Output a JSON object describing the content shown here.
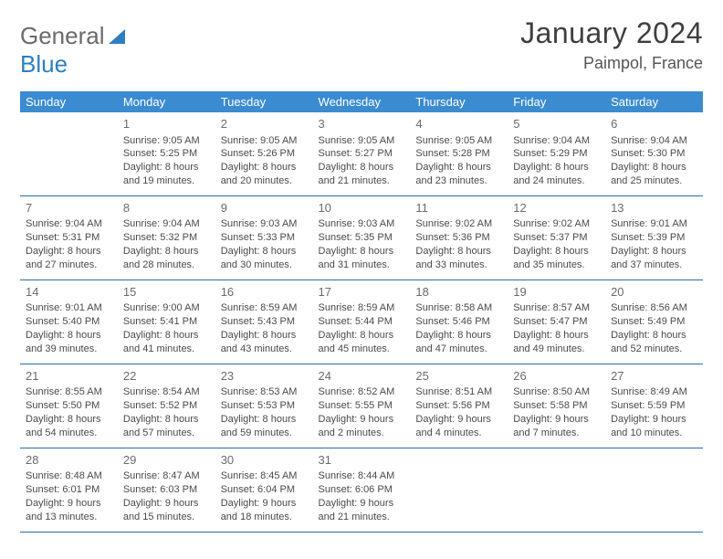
{
  "brand": {
    "part1": "General",
    "part2": "Blue"
  },
  "title": "January 2024",
  "location": "Paimpol, France",
  "colors": {
    "header_bg": "#3b8bd0",
    "header_fg": "#ffffff",
    "row_border": "#2d6aa3",
    "logo_gray": "#6a6a6a",
    "logo_blue": "#2d7fc1"
  },
  "weekdays": [
    "Sunday",
    "Monday",
    "Tuesday",
    "Wednesday",
    "Thursday",
    "Friday",
    "Saturday"
  ],
  "weeks": [
    [
      {
        "blank": true
      },
      {
        "day": "1",
        "sunrise": "Sunrise: 9:05 AM",
        "sunset": "Sunset: 5:25 PM",
        "day1": "Daylight: 8 hours",
        "day2": "and 19 minutes."
      },
      {
        "day": "2",
        "sunrise": "Sunrise: 9:05 AM",
        "sunset": "Sunset: 5:26 PM",
        "day1": "Daylight: 8 hours",
        "day2": "and 20 minutes."
      },
      {
        "day": "3",
        "sunrise": "Sunrise: 9:05 AM",
        "sunset": "Sunset: 5:27 PM",
        "day1": "Daylight: 8 hours",
        "day2": "and 21 minutes."
      },
      {
        "day": "4",
        "sunrise": "Sunrise: 9:05 AM",
        "sunset": "Sunset: 5:28 PM",
        "day1": "Daylight: 8 hours",
        "day2": "and 23 minutes."
      },
      {
        "day": "5",
        "sunrise": "Sunrise: 9:04 AM",
        "sunset": "Sunset: 5:29 PM",
        "day1": "Daylight: 8 hours",
        "day2": "and 24 minutes."
      },
      {
        "day": "6",
        "sunrise": "Sunrise: 9:04 AM",
        "sunset": "Sunset: 5:30 PM",
        "day1": "Daylight: 8 hours",
        "day2": "and 25 minutes."
      }
    ],
    [
      {
        "day": "7",
        "sunrise": "Sunrise: 9:04 AM",
        "sunset": "Sunset: 5:31 PM",
        "day1": "Daylight: 8 hours",
        "day2": "and 27 minutes."
      },
      {
        "day": "8",
        "sunrise": "Sunrise: 9:04 AM",
        "sunset": "Sunset: 5:32 PM",
        "day1": "Daylight: 8 hours",
        "day2": "and 28 minutes."
      },
      {
        "day": "9",
        "sunrise": "Sunrise: 9:03 AM",
        "sunset": "Sunset: 5:33 PM",
        "day1": "Daylight: 8 hours",
        "day2": "and 30 minutes."
      },
      {
        "day": "10",
        "sunrise": "Sunrise: 9:03 AM",
        "sunset": "Sunset: 5:35 PM",
        "day1": "Daylight: 8 hours",
        "day2": "and 31 minutes."
      },
      {
        "day": "11",
        "sunrise": "Sunrise: 9:02 AM",
        "sunset": "Sunset: 5:36 PM",
        "day1": "Daylight: 8 hours",
        "day2": "and 33 minutes."
      },
      {
        "day": "12",
        "sunrise": "Sunrise: 9:02 AM",
        "sunset": "Sunset: 5:37 PM",
        "day1": "Daylight: 8 hours",
        "day2": "and 35 minutes."
      },
      {
        "day": "13",
        "sunrise": "Sunrise: 9:01 AM",
        "sunset": "Sunset: 5:39 PM",
        "day1": "Daylight: 8 hours",
        "day2": "and 37 minutes."
      }
    ],
    [
      {
        "day": "14",
        "sunrise": "Sunrise: 9:01 AM",
        "sunset": "Sunset: 5:40 PM",
        "day1": "Daylight: 8 hours",
        "day2": "and 39 minutes."
      },
      {
        "day": "15",
        "sunrise": "Sunrise: 9:00 AM",
        "sunset": "Sunset: 5:41 PM",
        "day1": "Daylight: 8 hours",
        "day2": "and 41 minutes."
      },
      {
        "day": "16",
        "sunrise": "Sunrise: 8:59 AM",
        "sunset": "Sunset: 5:43 PM",
        "day1": "Daylight: 8 hours",
        "day2": "and 43 minutes."
      },
      {
        "day": "17",
        "sunrise": "Sunrise: 8:59 AM",
        "sunset": "Sunset: 5:44 PM",
        "day1": "Daylight: 8 hours",
        "day2": "and 45 minutes."
      },
      {
        "day": "18",
        "sunrise": "Sunrise: 8:58 AM",
        "sunset": "Sunset: 5:46 PM",
        "day1": "Daylight: 8 hours",
        "day2": "and 47 minutes."
      },
      {
        "day": "19",
        "sunrise": "Sunrise: 8:57 AM",
        "sunset": "Sunset: 5:47 PM",
        "day1": "Daylight: 8 hours",
        "day2": "and 49 minutes."
      },
      {
        "day": "20",
        "sunrise": "Sunrise: 8:56 AM",
        "sunset": "Sunset: 5:49 PM",
        "day1": "Daylight: 8 hours",
        "day2": "and 52 minutes."
      }
    ],
    [
      {
        "day": "21",
        "sunrise": "Sunrise: 8:55 AM",
        "sunset": "Sunset: 5:50 PM",
        "day1": "Daylight: 8 hours",
        "day2": "and 54 minutes."
      },
      {
        "day": "22",
        "sunrise": "Sunrise: 8:54 AM",
        "sunset": "Sunset: 5:52 PM",
        "day1": "Daylight: 8 hours",
        "day2": "and 57 minutes."
      },
      {
        "day": "23",
        "sunrise": "Sunrise: 8:53 AM",
        "sunset": "Sunset: 5:53 PM",
        "day1": "Daylight: 8 hours",
        "day2": "and 59 minutes."
      },
      {
        "day": "24",
        "sunrise": "Sunrise: 8:52 AM",
        "sunset": "Sunset: 5:55 PM",
        "day1": "Daylight: 9 hours",
        "day2": "and 2 minutes."
      },
      {
        "day": "25",
        "sunrise": "Sunrise: 8:51 AM",
        "sunset": "Sunset: 5:56 PM",
        "day1": "Daylight: 9 hours",
        "day2": "and 4 minutes."
      },
      {
        "day": "26",
        "sunrise": "Sunrise: 8:50 AM",
        "sunset": "Sunset: 5:58 PM",
        "day1": "Daylight: 9 hours",
        "day2": "and 7 minutes."
      },
      {
        "day": "27",
        "sunrise": "Sunrise: 8:49 AM",
        "sunset": "Sunset: 5:59 PM",
        "day1": "Daylight: 9 hours",
        "day2": "and 10 minutes."
      }
    ],
    [
      {
        "day": "28",
        "sunrise": "Sunrise: 8:48 AM",
        "sunset": "Sunset: 6:01 PM",
        "day1": "Daylight: 9 hours",
        "day2": "and 13 minutes."
      },
      {
        "day": "29",
        "sunrise": "Sunrise: 8:47 AM",
        "sunset": "Sunset: 6:03 PM",
        "day1": "Daylight: 9 hours",
        "day2": "and 15 minutes."
      },
      {
        "day": "30",
        "sunrise": "Sunrise: 8:45 AM",
        "sunset": "Sunset: 6:04 PM",
        "day1": "Daylight: 9 hours",
        "day2": "and 18 minutes."
      },
      {
        "day": "31",
        "sunrise": "Sunrise: 8:44 AM",
        "sunset": "Sunset: 6:06 PM",
        "day1": "Daylight: 9 hours",
        "day2": "and 21 minutes."
      },
      {
        "blank": true
      },
      {
        "blank": true
      },
      {
        "blank": true
      }
    ]
  ]
}
